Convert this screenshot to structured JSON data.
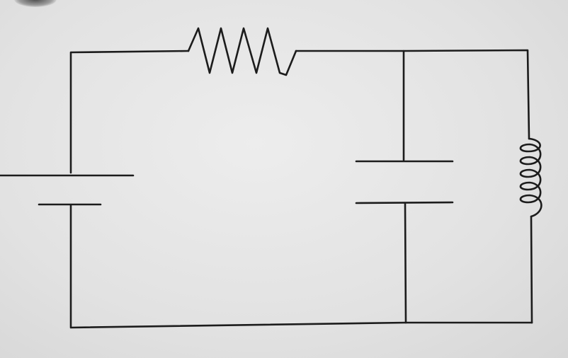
{
  "diagram": {
    "type": "circuit",
    "components": {
      "battery": "battery-symbol",
      "resistor": "resistor-symbol",
      "capacitor": "capacitor-symbol",
      "inductor": "inductor-symbol"
    },
    "colors": {
      "ink": "#1c1c1c",
      "paper": "#e4e4e4"
    }
  }
}
